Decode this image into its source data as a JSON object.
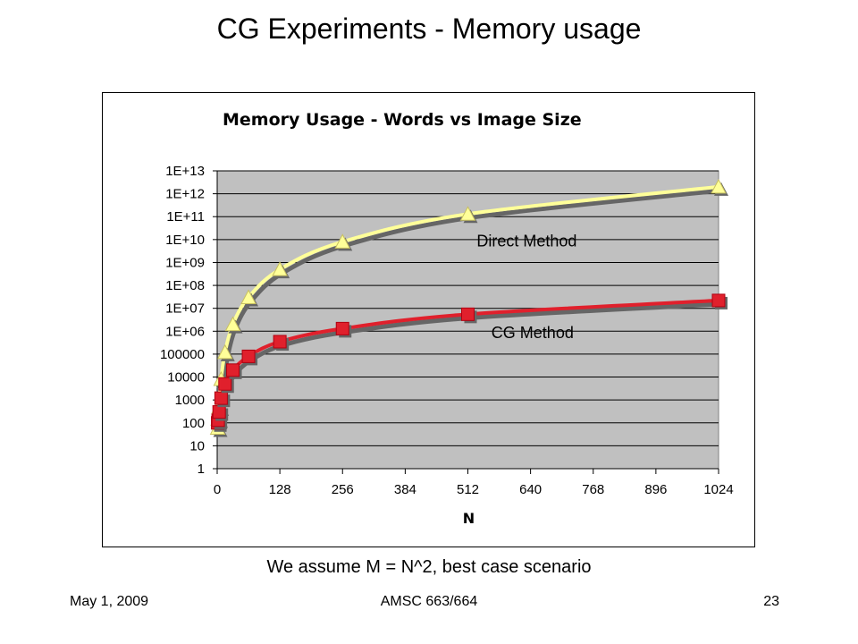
{
  "slide": {
    "title": "CG Experiments - Memory usage",
    "caption": "We assume M = N^2, best case scenario",
    "footer_date": "May 1, 2009",
    "footer_course": "AMSC 663/664",
    "page_number": "23"
  },
  "chart_data": {
    "type": "line",
    "title": "Memory Usage - Words vs Image Size",
    "xlabel": "N",
    "ylabel": "",
    "xlim": [
      0,
      1024
    ],
    "x_ticks": [
      0,
      128,
      256,
      384,
      512,
      640,
      768,
      896,
      1024
    ],
    "x_tick_labels": [
      "0",
      "128",
      "256",
      "384",
      "512",
      "640",
      "768",
      "896",
      "1024"
    ],
    "y_scale": "log",
    "ylim": [
      1,
      10000000000000
    ],
    "y_ticks": [
      1,
      10,
      100,
      1000,
      10000,
      100000,
      1000000,
      10000000,
      100000000,
      1000000000,
      10000000000,
      100000000000,
      1000000000000,
      10000000000000
    ],
    "y_tick_labels": [
      "1",
      "10",
      "100",
      "1000",
      "10000",
      "100000",
      "1E+06",
      "1E+07",
      "1E+08",
      "1E+09",
      "1E+10",
      "1E+11",
      "1E+12",
      "1E+13"
    ],
    "grid": true,
    "legend": "none",
    "plot_background": "#c0c0c0",
    "series": [
      {
        "name": "Direct Method",
        "color": "#ffff99",
        "marker": "triangle",
        "x": [
          1,
          2,
          4,
          8,
          16,
          32,
          64,
          128,
          256,
          512,
          1024
        ],
        "y": [
          60,
          150,
          500,
          8000,
          120000,
          2000000,
          30000000,
          500000000,
          8000000000,
          130000000000,
          2000000000000
        ]
      },
      {
        "name": "CG Method",
        "color": "#e0202c",
        "marker": "square",
        "x": [
          1,
          2,
          4,
          8,
          16,
          32,
          64,
          128,
          256,
          512,
          1024
        ],
        "y": [
          100,
          130,
          300,
          1200,
          5000,
          20000,
          80000,
          350000,
          1300000,
          5500000,
          22000000
        ]
      }
    ],
    "annotations": [
      {
        "text": "Direct Method",
        "x": 530,
        "y": 5000000000
      },
      {
        "text": "CG Method",
        "x": 560,
        "y": 500000
      }
    ]
  }
}
